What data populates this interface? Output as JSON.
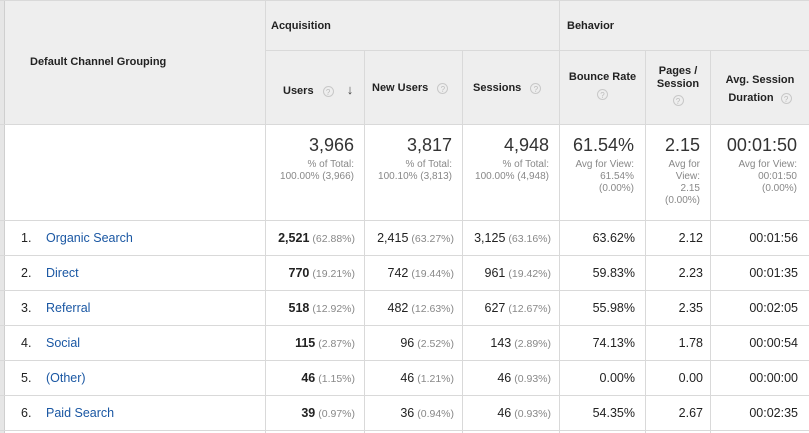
{
  "header": {
    "dimension": "Default Channel Grouping",
    "groups": {
      "acquisition": "Acquisition",
      "behavior": "Behavior"
    },
    "columns": {
      "users": "Users",
      "new_users": "New Users",
      "sessions": "Sessions",
      "bounce_rate": "Bounce Rate",
      "pages_l1": "Pages /",
      "pages_l2": "Session",
      "duration_l1": "Avg. Session",
      "duration_l2": "Duration"
    },
    "help_glyph": "?",
    "sort_glyph": "↓"
  },
  "totals": {
    "users": {
      "value": "3,966",
      "l1": "% of Total:",
      "l2": "100.00% (3,966)"
    },
    "new_users": {
      "value": "3,817",
      "l1": "% of Total:",
      "l2": "100.10% (3,813)"
    },
    "sessions": {
      "value": "4,948",
      "l1": "% of Total:",
      "l2": "100.00% (4,948)"
    },
    "bounce_rate": {
      "value": "61.54%",
      "l1": "Avg for View:",
      "l2": "61.54%",
      "l3": "(0.00%)"
    },
    "pages": {
      "value": "2.15",
      "l1": "Avg for",
      "l2": "View:",
      "l3": "2.15",
      "l4": "(0.00%)"
    },
    "duration": {
      "value": "00:01:50",
      "l1": "Avg for View:",
      "l2": "00:01:50",
      "l3": "(0.00%)"
    }
  },
  "rows": [
    {
      "index": "1.",
      "channel": "Organic Search",
      "users": "2,521",
      "users_pct": "(62.88%)",
      "new_users": "2,415",
      "new_users_pct": "(63.27%)",
      "sessions": "3,125",
      "sessions_pct": "(63.16%)",
      "bounce_rate": "63.62%",
      "pages": "2.12",
      "duration": "00:01:56"
    },
    {
      "index": "2.",
      "channel": "Direct",
      "users": "770",
      "users_pct": "(19.21%)",
      "new_users": "742",
      "new_users_pct": "(19.44%)",
      "sessions": "961",
      "sessions_pct": "(19.42%)",
      "bounce_rate": "59.83%",
      "pages": "2.23",
      "duration": "00:01:35"
    },
    {
      "index": "3.",
      "channel": "Referral",
      "users": "518",
      "users_pct": "(12.92%)",
      "new_users": "482",
      "new_users_pct": "(12.63%)",
      "sessions": "627",
      "sessions_pct": "(12.67%)",
      "bounce_rate": "55.98%",
      "pages": "2.35",
      "duration": "00:02:05"
    },
    {
      "index": "4.",
      "channel": "Social",
      "users": "115",
      "users_pct": "(2.87%)",
      "new_users": "96",
      "new_users_pct": "(2.52%)",
      "sessions": "143",
      "sessions_pct": "(2.89%)",
      "bounce_rate": "74.13%",
      "pages": "1.78",
      "duration": "00:00:54"
    },
    {
      "index": "5.",
      "channel": "(Other)",
      "users": "46",
      "users_pct": "(1.15%)",
      "new_users": "46",
      "new_users_pct": "(1.21%)",
      "sessions": "46",
      "sessions_pct": "(0.93%)",
      "bounce_rate": "0.00%",
      "pages": "0.00",
      "duration": "00:00:00"
    },
    {
      "index": "6.",
      "channel": "Paid Search",
      "users": "39",
      "users_pct": "(0.97%)",
      "new_users": "36",
      "new_users_pct": "(0.94%)",
      "sessions": "46",
      "sessions_pct": "(0.93%)",
      "bounce_rate": "54.35%",
      "pages": "2.67",
      "duration": "00:02:35"
    }
  ]
}
